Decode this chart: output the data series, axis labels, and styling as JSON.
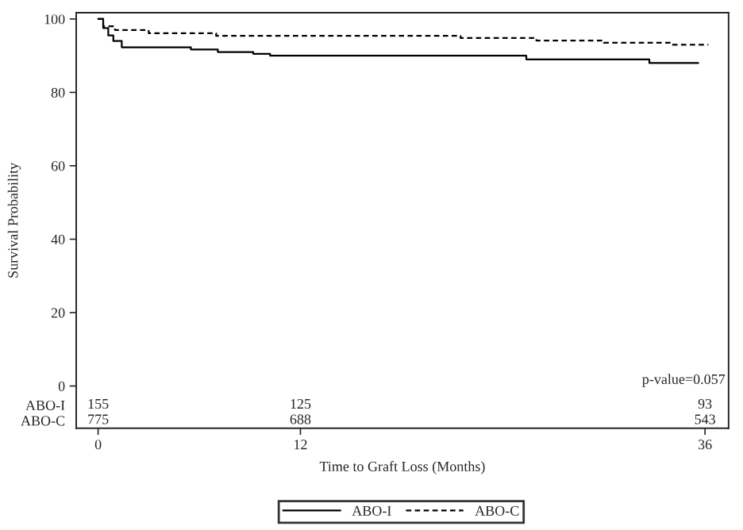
{
  "chart_data": {
    "type": "step",
    "xlabel": "Time to Graft Loss (Months)",
    "ylabel": "Survival Probability",
    "series": [
      {
        "name": "ABO-I",
        "color": "#000000",
        "line_style": "solid",
        "x": [
          0,
          0.3,
          0.6,
          0.9,
          1.4,
          5.5,
          7.1,
          9.2,
          10.2,
          25.4,
          32.7,
          35.6
        ],
        "values": [
          100,
          97.5,
          95.5,
          94,
          92.3,
          91.7,
          91.0,
          90.5,
          90.0,
          89.0,
          88.0,
          88.0
        ]
      },
      {
        "name": "ABO-C",
        "color": "#000000",
        "line_style": "dashed",
        "x": [
          0,
          0.3,
          1.0,
          3.0,
          7.0,
          21.5,
          26.0,
          30.0,
          34.0,
          36.2
        ],
        "values": [
          100,
          98,
          97,
          96.1,
          95.4,
          94.8,
          94.1,
          93.5,
          93.0,
          93.0
        ]
      }
    ],
    "xlim": [
      -1.3,
      37.4
    ],
    "ylim": [
      -11.5,
      101.7
    ],
    "xticks": [
      0,
      12,
      36
    ],
    "yticks": [
      0,
      20,
      40,
      60,
      80,
      100,
      {
        "value": -5.2,
        "label": "ABO-I"
      },
      {
        "value": -9.4,
        "label": "ABO-C"
      }
    ],
    "annotations": [
      "155",
      "125",
      "93",
      "775",
      "688",
      "543",
      "p-value=0.057"
    ],
    "legend": "bottom",
    "grid": false
  }
}
